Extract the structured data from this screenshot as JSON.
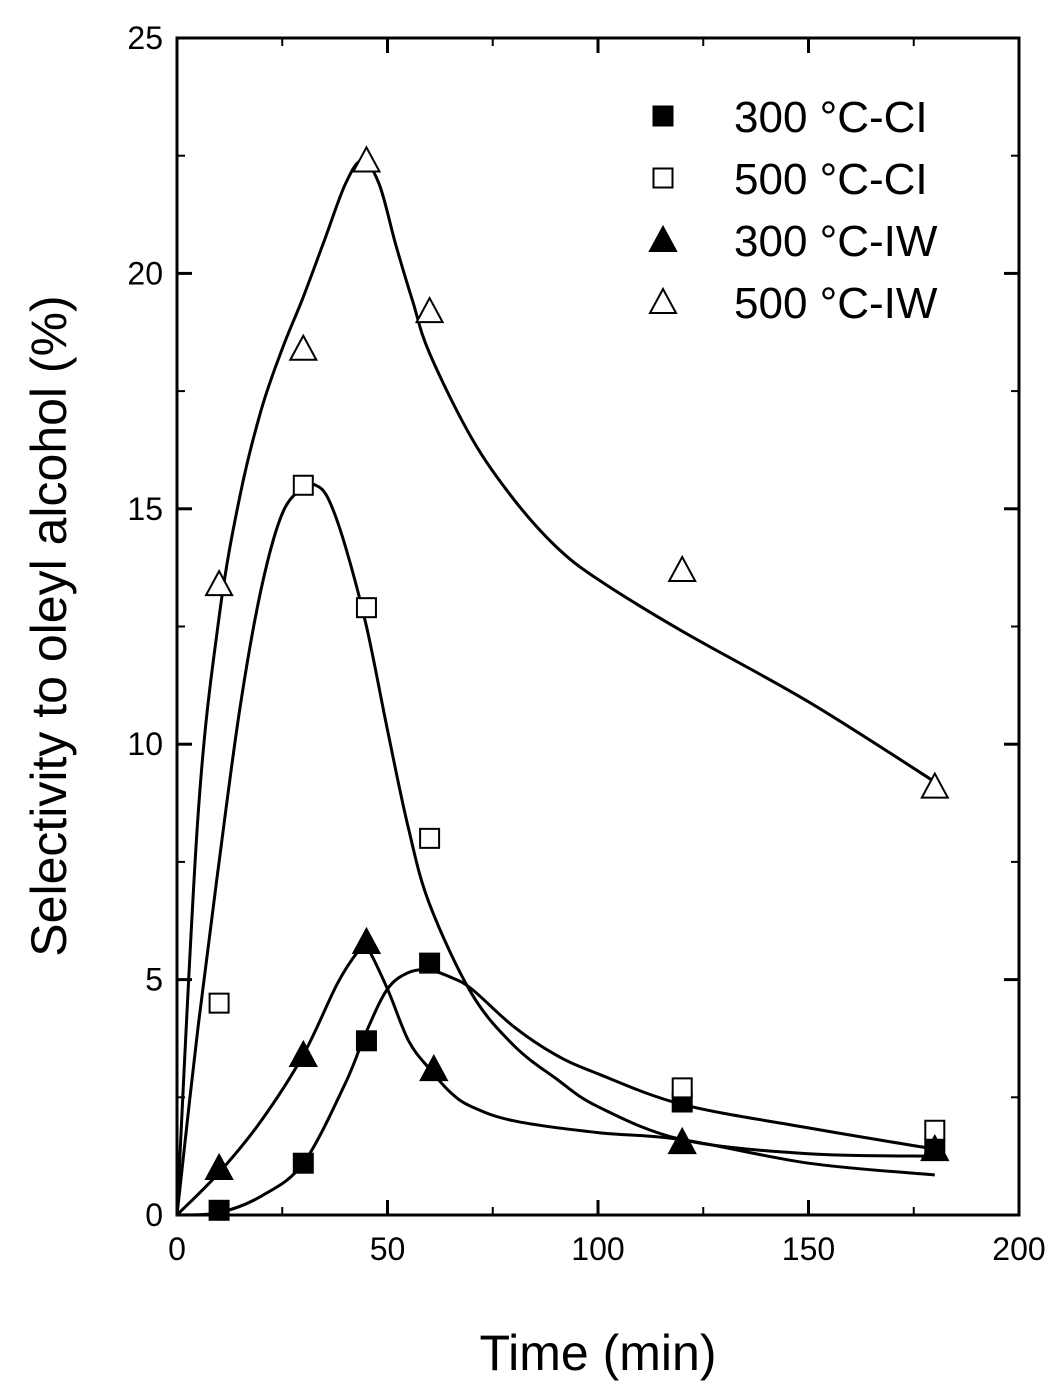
{
  "chart_data": {
    "type": "scatter",
    "xlabel": "Time (min)",
    "ylabel": "Selectivity to oleyl alcohol (%)",
    "xlim": [
      0,
      200
    ],
    "ylim": [
      0,
      25
    ],
    "x_ticks": [
      "0",
      "50",
      "100",
      "150",
      "200"
    ],
    "y_ticks": [
      "0",
      "5",
      "10",
      "15",
      "20",
      "25"
    ],
    "grid": false,
    "legend_position": "top-right",
    "series": [
      {
        "name": "300 °C-CI",
        "marker": "square-filled",
        "x": [
          10,
          30,
          45,
          60,
          120,
          180
        ],
        "y": [
          0.1,
          1.1,
          3.7,
          5.35,
          2.4,
          1.4
        ],
        "fit": [
          [
            0,
            0
          ],
          [
            10,
            0.05
          ],
          [
            20,
            0.4
          ],
          [
            30,
            1.1
          ],
          [
            40,
            2.8
          ],
          [
            45,
            3.9
          ],
          [
            50,
            4.8
          ],
          [
            55,
            5.15
          ],
          [
            60,
            5.2
          ],
          [
            65,
            5.05
          ],
          [
            70,
            4.8
          ],
          [
            80,
            4.0
          ],
          [
            90,
            3.4
          ],
          [
            100,
            3.0
          ],
          [
            120,
            2.35
          ],
          [
            150,
            1.85
          ],
          [
            180,
            1.4
          ]
        ]
      },
      {
        "name": "500 °C-CI",
        "marker": "square-open",
        "x": [
          10,
          30,
          45,
          60,
          120,
          180
        ],
        "y": [
          4.5,
          15.5,
          12.9,
          8.0,
          2.7,
          1.8
        ],
        "fit": [
          [
            0,
            0
          ],
          [
            5,
            4.0
          ],
          [
            10,
            7.5
          ],
          [
            15,
            10.8
          ],
          [
            20,
            13.3
          ],
          [
            25,
            14.9
          ],
          [
            30,
            15.45
          ],
          [
            33,
            15.5
          ],
          [
            36,
            15.2
          ],
          [
            40,
            14.2
          ],
          [
            45,
            12.5
          ],
          [
            50,
            10.3
          ],
          [
            55,
            8.2
          ],
          [
            60,
            6.6
          ],
          [
            70,
            4.7
          ],
          [
            80,
            3.6
          ],
          [
            90,
            2.9
          ],
          [
            100,
            2.3
          ],
          [
            120,
            1.6
          ],
          [
            150,
            1.3
          ],
          [
            180,
            1.25
          ]
        ]
      },
      {
        "name": "300 °C-IW",
        "marker": "triangle-filled",
        "x": [
          10,
          30,
          45,
          61,
          120,
          180
        ],
        "y": [
          1.0,
          3.4,
          5.8,
          3.1,
          1.55,
          1.4
        ],
        "fit": [
          [
            0,
            0
          ],
          [
            10,
            0.9
          ],
          [
            20,
            2.0
          ],
          [
            30,
            3.4
          ],
          [
            38,
            4.9
          ],
          [
            43,
            5.6
          ],
          [
            45,
            5.7
          ],
          [
            50,
            4.8
          ],
          [
            55,
            3.7
          ],
          [
            60,
            3.1
          ],
          [
            65,
            2.6
          ],
          [
            70,
            2.3
          ],
          [
            80,
            2.0
          ],
          [
            100,
            1.75
          ],
          [
            120,
            1.6
          ],
          [
            150,
            1.1
          ],
          [
            180,
            0.85
          ]
        ]
      },
      {
        "name": "500 °C-IW",
        "marker": "triangle-open",
        "x": [
          10,
          30,
          45,
          60,
          120,
          180
        ],
        "y": [
          13.4,
          18.4,
          22.4,
          19.2,
          13.7,
          9.1
        ],
        "fit": [
          [
            0,
            0
          ],
          [
            5,
            8.5
          ],
          [
            10,
            12.7
          ],
          [
            15,
            15.3
          ],
          [
            20,
            17.1
          ],
          [
            25,
            18.4
          ],
          [
            30,
            19.5
          ],
          [
            35,
            20.7
          ],
          [
            40,
            21.9
          ],
          [
            44,
            22.4
          ],
          [
            48,
            21.9
          ],
          [
            52,
            20.6
          ],
          [
            56,
            19.4
          ],
          [
            60,
            18.3
          ],
          [
            70,
            16.5
          ],
          [
            80,
            15.2
          ],
          [
            90,
            14.2
          ],
          [
            100,
            13.5
          ],
          [
            120,
            12.4
          ],
          [
            150,
            10.9
          ],
          [
            180,
            9.2
          ]
        ]
      }
    ]
  }
}
